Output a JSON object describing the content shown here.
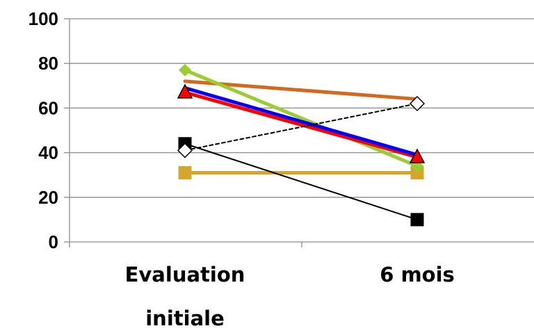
{
  "chart_data": {
    "type": "line",
    "categories": [
      "Evaluation initiale",
      "6 mois"
    ],
    "category_lines": [
      [
        "Evaluation",
        "initiale"
      ],
      [
        "6 mois"
      ]
    ],
    "ylim": [
      0,
      100
    ],
    "yticks": [
      0,
      20,
      40,
      60,
      80,
      100
    ],
    "grid": true,
    "xlabel": "",
    "ylabel": "",
    "title": "",
    "series": [
      {
        "values": [
          31,
          31
        ],
        "color": "#d4a72c",
        "marker": "square",
        "dash": false
      },
      {
        "values": [
          72,
          64
        ],
        "color": "#d2691e",
        "marker": "none",
        "dash": false
      },
      {
        "values": [
          77,
          34
        ],
        "color": "#9acd32",
        "marker": "diamond",
        "dash": false
      },
      {
        "values": [
          67,
          38
        ],
        "color": "#ff0000",
        "marker": "triangle",
        "dash": false
      },
      {
        "values": [
          69,
          39
        ],
        "color": "#0000ff",
        "marker": "none",
        "dash": false
      },
      {
        "values": [
          44,
          10
        ],
        "color": "#000000",
        "marker": "square",
        "dash": false
      },
      {
        "values": [
          41,
          62
        ],
        "color": "#000000",
        "marker": "open-diamond",
        "dash": true
      }
    ]
  }
}
